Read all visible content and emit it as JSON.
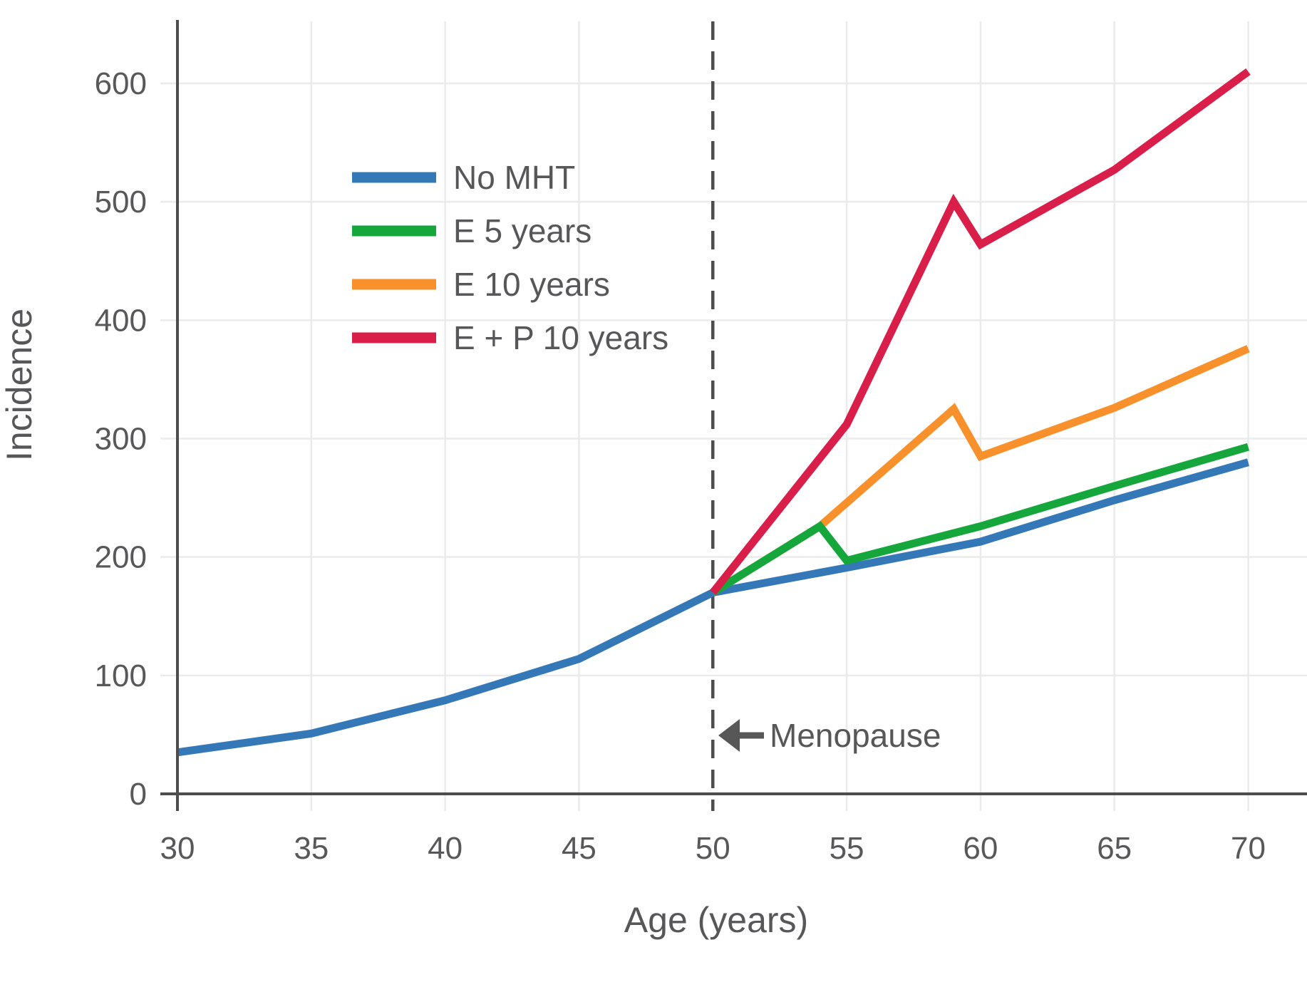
{
  "chart_data": {
    "type": "line",
    "title": "",
    "xlabel": "Age (years)",
    "ylabel": "Incidence",
    "xticks": [
      30,
      35,
      40,
      45,
      50,
      55,
      60,
      65,
      70
    ],
    "yticks": [
      0,
      100,
      200,
      300,
      400,
      500,
      600
    ],
    "xlim": [
      30,
      71.5
    ],
    "ylim": [
      0,
      652
    ],
    "grid": true,
    "legend": {
      "position": "upper-left-inside",
      "entries": [
        "No MHT",
        "E 5 years",
        "E 10 years",
        "E + P 10 years"
      ]
    },
    "menopause_line": {
      "x": 50,
      "style": "dashed",
      "color": "#4d4d4d"
    },
    "annotation": {
      "text": "Menopause",
      "arrow": "left",
      "points_to_x": 50,
      "at_y": 50
    },
    "series": [
      {
        "name": "No MHT",
        "color": "#3578b8",
        "points": [
          [
            30,
            35
          ],
          [
            35,
            51
          ],
          [
            40,
            79
          ],
          [
            45,
            114
          ],
          [
            50,
            170
          ],
          [
            55,
            191
          ],
          [
            60,
            213
          ],
          [
            65,
            248
          ],
          [
            70,
            280
          ]
        ]
      },
      {
        "name": "E 5 years",
        "color": "#15a63c",
        "points": [
          [
            50,
            170
          ],
          [
            54,
            226
          ],
          [
            55,
            197
          ],
          [
            60,
            226
          ],
          [
            65,
            260
          ],
          [
            70,
            293
          ]
        ]
      },
      {
        "name": "E 10 years",
        "color": "#f8912c",
        "points": [
          [
            50,
            170
          ],
          [
            54,
            226
          ],
          [
            59,
            325
          ],
          [
            60,
            285
          ],
          [
            65,
            326
          ],
          [
            70,
            376
          ]
        ]
      },
      {
        "name": "E + P 10 years",
        "color": "#d91e49",
        "points": [
          [
            50,
            170
          ],
          [
            55,
            312
          ],
          [
            59,
            500
          ],
          [
            60,
            464
          ],
          [
            65,
            527
          ],
          [
            70,
            610
          ]
        ]
      }
    ],
    "draw_order": [
      0,
      2,
      1,
      3
    ]
  },
  "style_colors": {
    "tick_text": "#58585a",
    "title_text": "#57575a",
    "annotation_text": "#575757",
    "spine": "#4d4d4d",
    "gridline": "#ebebeb",
    "background": "#ffffff"
  }
}
